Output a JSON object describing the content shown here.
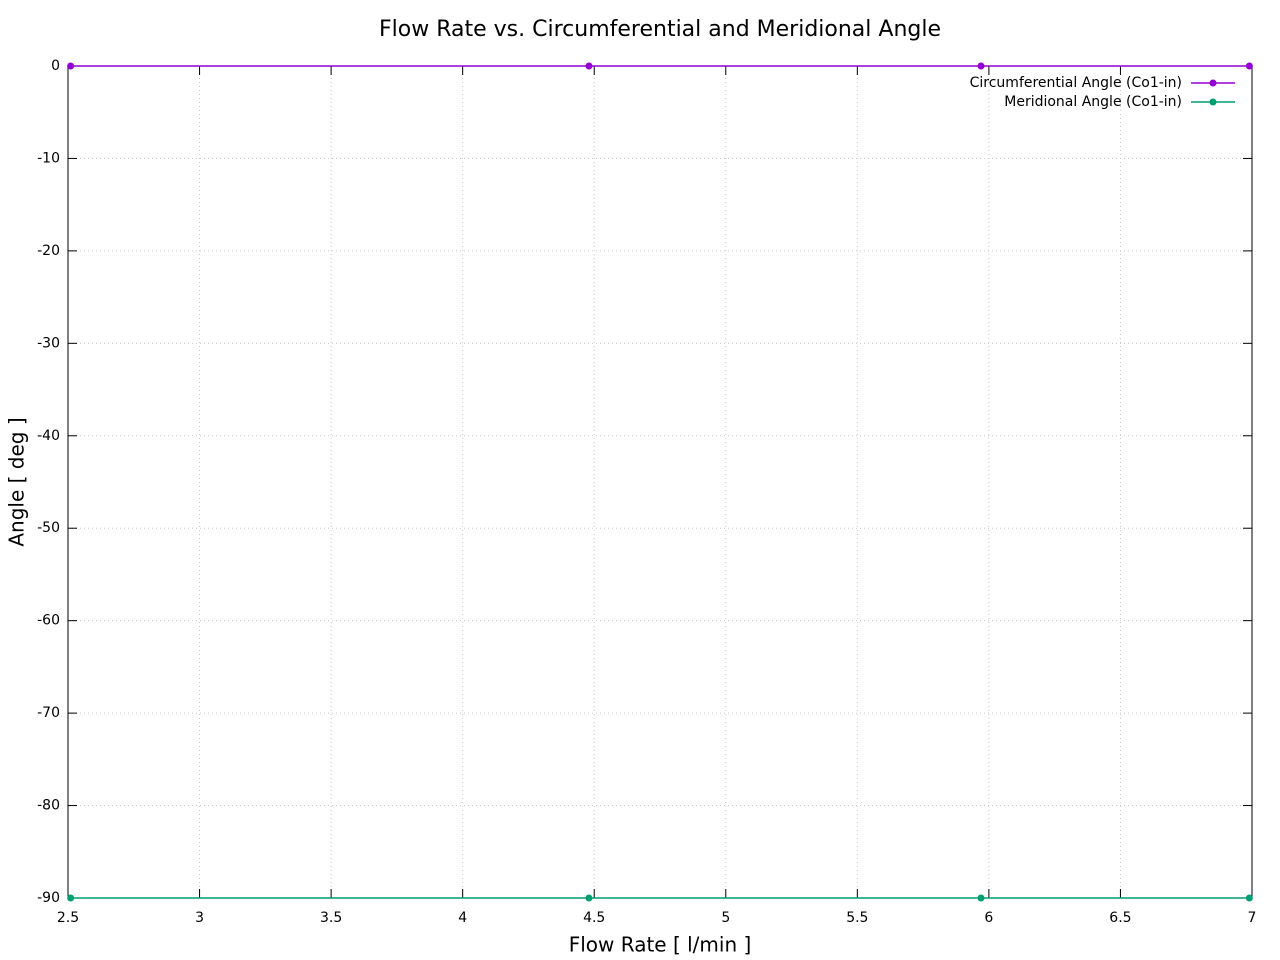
{
  "chart_data": {
    "type": "line",
    "title": "Flow Rate vs. Circumferential and Meridional Angle",
    "x_label": "Flow Rate [ l/min ]",
    "y_label": "Angle [ deg ]",
    "x": [
      2.51,
      4.48,
      5.97,
      6.99
    ],
    "series": [
      {
        "name": "Circumferential Angle (Co1-in)",
        "color": "#9400d3",
        "values": [
          0,
          0,
          0,
          0
        ]
      },
      {
        "name": "Meridional Angle (Co1-in)",
        "color": "#009e73",
        "values": [
          -90,
          -90,
          -90,
          -90
        ]
      }
    ],
    "xlim": [
      2.5,
      7
    ],
    "xticks": [
      2.5,
      3,
      3.5,
      4,
      4.5,
      5,
      5.5,
      6,
      6.5,
      7
    ],
    "ylim": [
      -90,
      0
    ],
    "yticks": [
      0,
      -10,
      -20,
      -30,
      -40,
      -50,
      -60,
      -70,
      -80,
      -90
    ],
    "grid": true,
    "legend": "top-right"
  }
}
